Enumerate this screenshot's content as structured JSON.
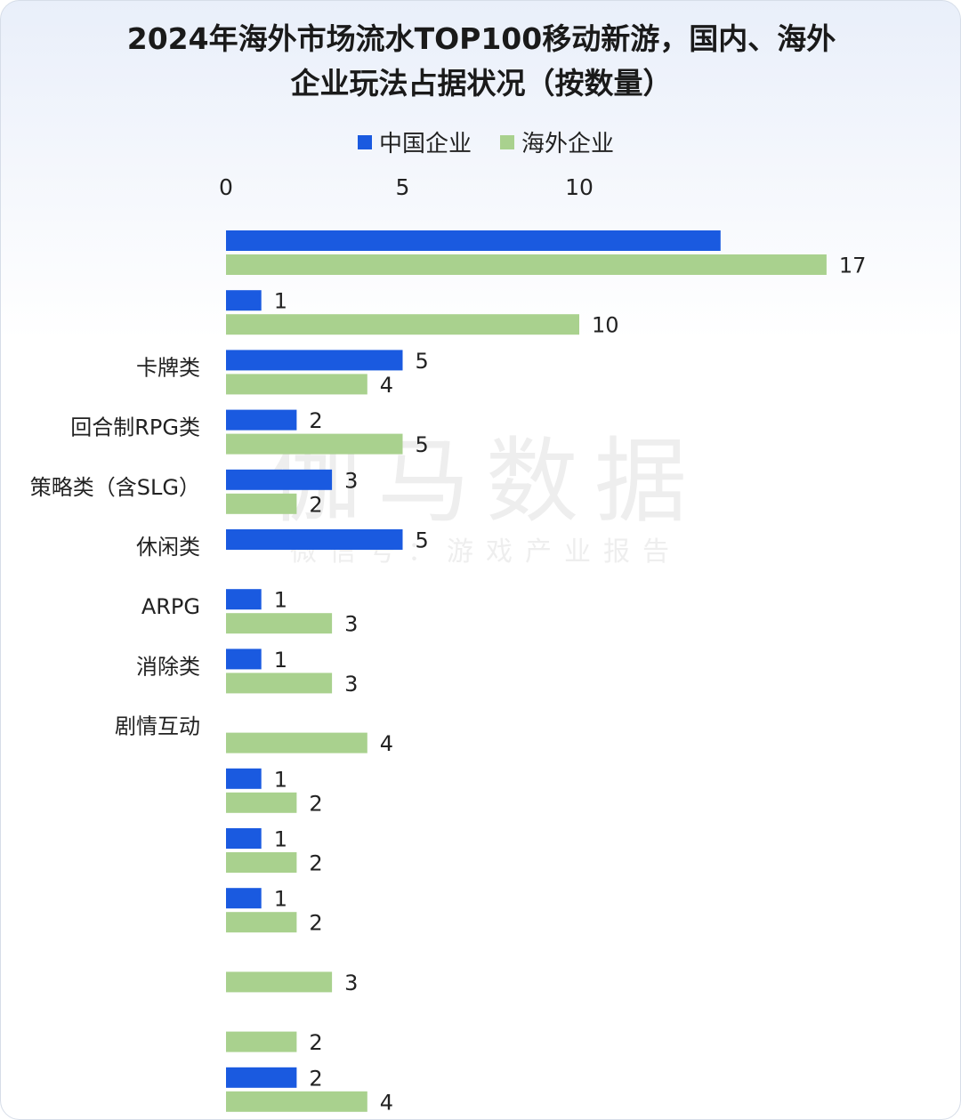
{
  "chart_data": {
    "type": "bar",
    "orientation": "horizontal",
    "title": "2024年海外市场流水TOP100移动新游，国内、海外企业玩法占据状况（按数量）",
    "title_lines": [
      "2024年海外市场流水TOP100移动新游，国内、海外",
      "企业玩法占据状况（按数量）"
    ],
    "categories": [
      "",
      "",
      "卡牌类",
      "回合制RPG类",
      "策略类（含SLG）",
      "休闲类",
      "ARPG",
      "消除类",
      "剧情互动",
      "",
      "",
      "",
      "",
      "",
      ""
    ],
    "series": [
      {
        "name": "中国企业",
        "color": "#1a5ae0",
        "values": [
          14,
          1,
          5,
          2,
          3,
          5,
          1,
          1,
          null,
          1,
          1,
          1,
          null,
          null,
          2
        ]
      },
      {
        "name": "海外企业",
        "color": "#a9d18e",
        "values": [
          17,
          10,
          4,
          5,
          2,
          null,
          3,
          3,
          4,
          2,
          2,
          2,
          3,
          2,
          4
        ]
      }
    ],
    "data_labels": {
      "中国企业": [
        "",
        "1",
        "5",
        "2",
        "3",
        "5",
        "1",
        "1",
        "",
        "1",
        "1",
        "1",
        "",
        "",
        "2"
      ],
      "海外企业": [
        "17",
        "10",
        "4",
        "5",
        "2",
        "",
        "3",
        "3",
        "4",
        "2",
        "2",
        "2",
        "3",
        "2",
        "4"
      ]
    },
    "xaxis": {
      "ticks": [
        0,
        5,
        10
      ],
      "tick_labels": [
        "0",
        "5",
        "10"
      ],
      "position": "top"
    },
    "legend": {
      "position": "top-center"
    },
    "grid": false
  },
  "watermark": {
    "main": "伽马数据",
    "sub": "微信号：游戏产业报告"
  }
}
